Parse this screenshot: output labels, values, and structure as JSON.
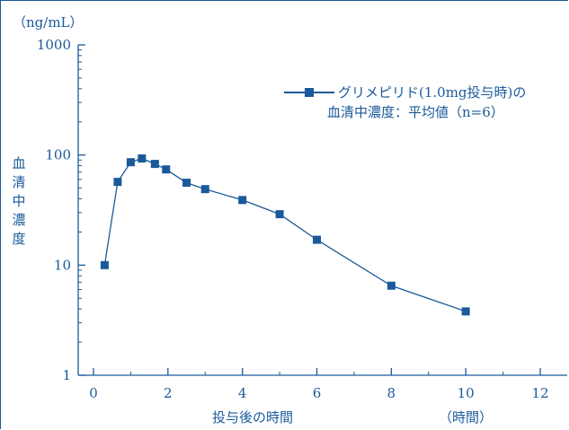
{
  "chart_data": {
    "type": "line",
    "title": "",
    "xlabel": "投与後の時間",
    "xunit": "（時間）",
    "ylabel": "血清中濃度",
    "yunit": "（ng/mL）",
    "yscale": "log",
    "xlim": [
      0,
      12
    ],
    "ylim": [
      1,
      1000
    ],
    "x_ticks": [
      "0",
      "2",
      "4",
      "6",
      "8",
      "10",
      "12"
    ],
    "y_ticks": [
      "1",
      "10",
      "100",
      "1000"
    ],
    "grid": false,
    "legend_position": "top-right",
    "series": [
      {
        "name_line1": "グリメピリド(1.0mg投与時)の",
        "name_line2": "血清中濃度：平均値（n=6）",
        "x": [
          0.3,
          0.65,
          1.0,
          1.3,
          1.65,
          1.95,
          2.5,
          3.0,
          4.0,
          5.0,
          6.0,
          8.0,
          10.0
        ],
        "values": [
          10,
          57,
          86,
          93,
          83,
          74,
          56,
          49,
          39,
          29,
          17,
          6.5,
          3.8
        ]
      }
    ],
    "color": "#1a5a9a"
  }
}
